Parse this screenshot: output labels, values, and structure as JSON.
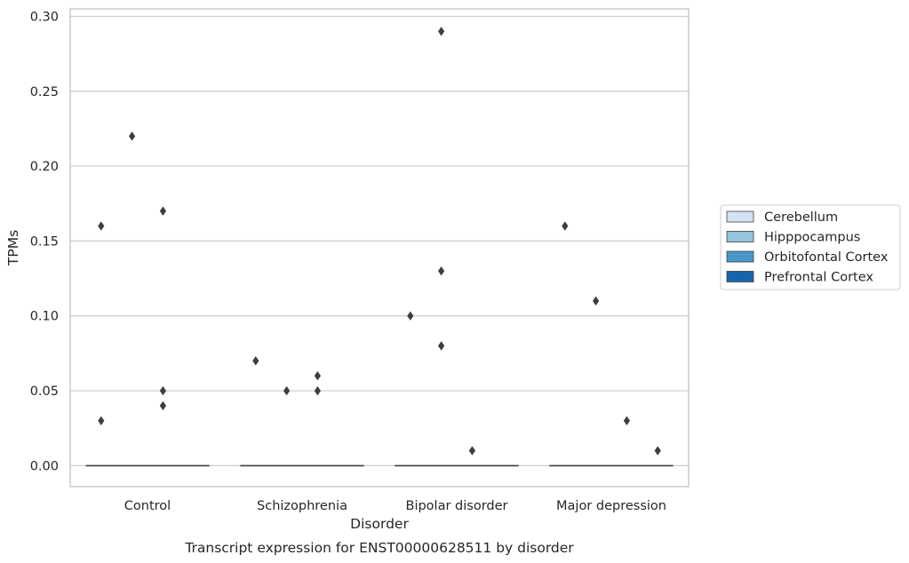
{
  "chart_data": {
    "type": "box",
    "title": "",
    "caption": "Transcript expression for ENST00000628511 by disorder",
    "xlabel": "Disorder",
    "ylabel": "TPMs",
    "ylim": [
      -0.014,
      0.305
    ],
    "yticks": [
      0.0,
      0.05,
      0.1,
      0.15,
      0.2,
      0.25,
      0.3
    ],
    "ytick_labels": [
      "0.00",
      "0.05",
      "0.10",
      "0.15",
      "0.20",
      "0.25",
      "0.30"
    ],
    "grid": "horizontal",
    "legend_position": "right",
    "categories": [
      "Control",
      "Schizophrenia",
      "Bipolar disorder",
      "Major depression"
    ],
    "series": [
      {
        "name": "Cerebellum",
        "color": "#d3e3f3",
        "median": [
          0.0,
          0.0,
          0.0,
          0.0
        ],
        "outliers": [
          [
            0.16,
            0.03
          ],
          [
            0.07
          ],
          [
            0.1
          ],
          [
            0.16
          ]
        ]
      },
      {
        "name": "Hipppocampus",
        "color": "#94c4df",
        "median": [
          0.0,
          0.0,
          0.0,
          0.0
        ],
        "outliers": [
          [
            0.22
          ],
          [
            0.05
          ],
          [
            0.29,
            0.13,
            0.08
          ],
          [
            0.11
          ]
        ]
      },
      {
        "name": "Orbitofontal Cortex",
        "color": "#4a98c9",
        "median": [
          0.0,
          0.0,
          0.0,
          0.0
        ],
        "outliers": [
          [
            0.17,
            0.05,
            0.04
          ],
          [
            0.06,
            0.05
          ],
          [
            0.01
          ],
          [
            0.03
          ]
        ]
      },
      {
        "name": "Prefrontal Cortex",
        "color": "#1764ab",
        "median": [
          0.0,
          0.0,
          0.0,
          0.0
        ],
        "outliers": [
          [],
          [],
          [],
          [
            0.01
          ]
        ]
      }
    ]
  }
}
